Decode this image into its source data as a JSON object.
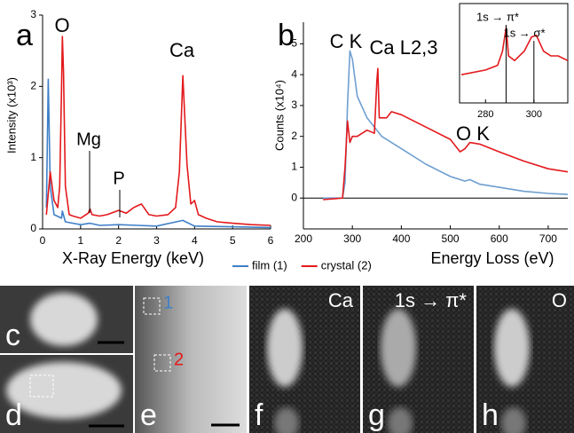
{
  "chart_data": [
    {
      "type": "line",
      "panel_label": "a",
      "y_label": "Intensity (x10³)",
      "x_label": "X-Ray Energy (keV)",
      "xlim": [
        0,
        6
      ],
      "xticks": [
        0,
        1,
        2,
        3,
        4,
        5,
        6
      ],
      "ylim": [
        0,
        3
      ],
      "yticks": [
        0,
        1,
        2,
        3
      ],
      "annotations": [
        "O",
        "Mg",
        "P",
        "Ca"
      ],
      "series": [
        {
          "name": "film (1)",
          "color": "#3f7fc8",
          "x": [
            0.1,
            0.15,
            0.2,
            0.3,
            0.5,
            0.52,
            0.6,
            0.8,
            1.0,
            1.25,
            1.5,
            2.0,
            2.5,
            3.0,
            3.69,
            4.0,
            5.0,
            6.0
          ],
          "values": [
            0.3,
            2.1,
            0.6,
            0.2,
            0.15,
            0.25,
            0.1,
            0.08,
            0.06,
            0.08,
            0.05,
            0.06,
            0.05,
            0.04,
            0.12,
            0.04,
            0.03,
            0.02
          ]
        },
        {
          "name": "crystal (2)",
          "color": "#e3191c",
          "x": [
            0.1,
            0.2,
            0.3,
            0.4,
            0.45,
            0.5,
            0.52,
            0.55,
            0.6,
            0.7,
            0.8,
            1.0,
            1.2,
            1.25,
            1.3,
            1.5,
            1.7,
            2.0,
            2.2,
            2.4,
            2.6,
            2.8,
            3.0,
            3.3,
            3.5,
            3.6,
            3.69,
            3.8,
            3.9,
            4.0,
            4.1,
            4.3,
            4.6,
            5.0,
            5.5,
            6.0
          ],
          "values": [
            0.2,
            0.8,
            0.4,
            0.3,
            0.6,
            2.0,
            2.7,
            2.2,
            0.6,
            0.2,
            0.18,
            0.15,
            0.22,
            0.28,
            0.2,
            0.18,
            0.2,
            0.26,
            0.22,
            0.3,
            0.35,
            0.2,
            0.18,
            0.2,
            0.3,
            0.8,
            2.15,
            0.9,
            0.35,
            0.4,
            0.2,
            0.15,
            0.1,
            0.08,
            0.06,
            0.05
          ]
        }
      ]
    },
    {
      "type": "line",
      "panel_label": "b",
      "y_label": "Counts (x10⁴)",
      "x_label": "Energy Loss (eV)",
      "xlim": [
        200,
        740
      ],
      "xticks": [
        200,
        300,
        400,
        500,
        600,
        700
      ],
      "ylim": [
        -1,
        5.7
      ],
      "yticks": [
        0,
        1,
        2,
        3,
        4,
        5
      ],
      "annotations": [
        "C K",
        "Ca L2,3",
        "O K"
      ],
      "series": [
        {
          "color": "#6f9fd0",
          "x": [
            240,
            280,
            285,
            290,
            295,
            300,
            310,
            330,
            360,
            400,
            450,
            500,
            530,
            540,
            560,
            600,
            650,
            700,
            740
          ],
          "values": [
            0,
            0,
            0.5,
            3,
            4.77,
            4.5,
            3.3,
            2.6,
            2.0,
            1.6,
            1.1,
            0.7,
            0.55,
            0.6,
            0.45,
            0.35,
            0.22,
            0.15,
            0.12
          ]
        },
        {
          "color": "#e3191c",
          "x": [
            240,
            280,
            285,
            290,
            295,
            300,
            310,
            330,
            345,
            350,
            352,
            355,
            370,
            380,
            400,
            450,
            500,
            520,
            530,
            540,
            560,
            600,
            650,
            700,
            740
          ],
          "values": [
            -0.05,
            0,
            1.0,
            2.5,
            1.8,
            2.0,
            2.0,
            2.2,
            2.1,
            3.8,
            4.2,
            2.6,
            2.6,
            2.8,
            2.7,
            2.3,
            1.9,
            1.5,
            1.6,
            1.8,
            1.75,
            1.5,
            1.2,
            0.95,
            0.85
          ]
        }
      ]
    },
    {
      "type": "line",
      "xlim": [
        270,
        314
      ],
      "xticks": [
        280,
        300
      ],
      "ylim": [
        0,
        1
      ],
      "annotations": [
        "1s → π*",
        "1s → σ*"
      ],
      "series": [
        {
          "color": "#e3191c",
          "x": [
            270,
            280,
            285,
            287,
            288.5,
            289.5,
            292,
            296,
            299,
            301,
            304,
            307,
            310,
            314
          ],
          "values": [
            0.3,
            0.35,
            0.4,
            0.55,
            0.8,
            0.5,
            0.45,
            0.55,
            0.7,
            0.72,
            0.55,
            0.5,
            0.5,
            0.45
          ]
        }
      ]
    }
  ],
  "panels": [
    {
      "label": "c"
    },
    {
      "label": "d"
    },
    {
      "label": "e",
      "markers": [
        "1",
        "2"
      ]
    },
    {
      "label": "f",
      "title": "Ca"
    },
    {
      "label": "g",
      "title": "1s → π*"
    },
    {
      "label": "h",
      "title": "O"
    }
  ]
}
